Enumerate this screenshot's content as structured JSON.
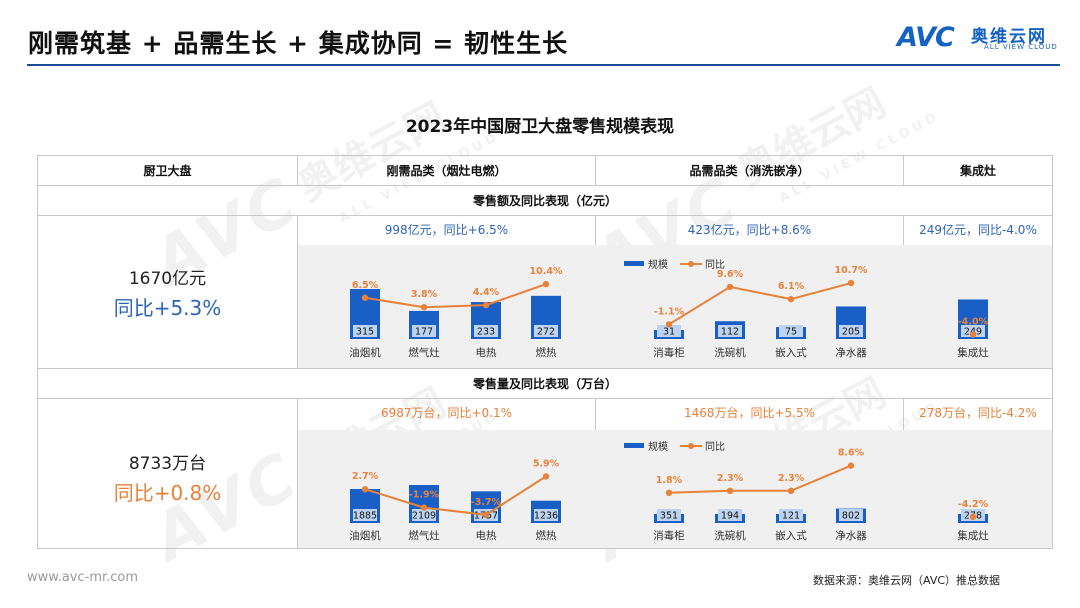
{
  "header": {
    "title": "刚需筑基 + 品需生长 + 集成协同 = 韧性生长",
    "logo_mark": "AVC",
    "logo_cn": "奥维云网",
    "logo_en": "ALL VIEW CLOUD"
  },
  "watermark": {
    "mark": "AVC",
    "cn": "奥维云网",
    "en": "ALL VIEW CLOUD"
  },
  "table": {
    "headers": [
      "厨卫大盘",
      "刚需品类（烟灶电燃）",
      "品需品类（消洗嵌净）",
      "集成灶"
    ],
    "section_sales": "零售额及同比表现（亿元）",
    "section_volume": "零售量及同比表现（万台）",
    "sales_total": "1670亿元",
    "sales_total_yoy": "同比+5.3%",
    "sales_summaries": [
      "998亿元，同比+6.5%",
      "423亿元，同比+8.6%",
      "249亿元，同比-4.0%"
    ],
    "volume_total": "8733万台",
    "volume_total_yoy": "同比+0.8%",
    "volume_summaries": [
      "6987万台，同比+0.1%",
      "1468万台，同比+5.5%",
      "278万台，同比-4.2%"
    ]
  },
  "legend": {
    "scale": "规模",
    "yoy": "同比"
  },
  "footer": {
    "left": "www.avc-mr.com",
    "right": "数据来源：奥维云网（AVC）推总数据"
  },
  "colors": {
    "bar": "#1a5fc6",
    "bar_label_bg": "#bdd4f1",
    "line": "#e8813a",
    "accent_blue": "#2e64b7",
    "accent_orange": "#e8813a"
  },
  "chart_data": {
    "title": "2023年中国厨卫大盘零售规模表现",
    "type": "bar",
    "panels": [
      {
        "metric": "sales",
        "group": "刚需品类（烟灶电燃）",
        "categories": [
          "油烟机",
          "燃气灶",
          "电热",
          "燃热"
        ],
        "series": [
          {
            "name": "规模",
            "type": "bar",
            "values": [
              315,
              177,
              233,
              272
            ]
          },
          {
            "name": "同比",
            "type": "line",
            "values": [
              6.5,
              3.8,
              4.4,
              10.4
            ],
            "labels": [
              "6.5%",
              "3.8%",
              "4.4%",
              "10.4%"
            ]
          }
        ]
      },
      {
        "metric": "sales",
        "group": "品需品类（消洗嵌净）",
        "categories": [
          "消毒柜",
          "洗碗机",
          "嵌入式",
          "净水器"
        ],
        "series": [
          {
            "name": "规模",
            "type": "bar",
            "values": [
              31,
              112,
              75,
              205
            ]
          },
          {
            "name": "同比",
            "type": "line",
            "values": [
              -1.1,
              9.6,
              6.1,
              10.7
            ],
            "labels": [
              "-1.1%",
              "9.6%",
              "6.1%",
              "10.7%"
            ]
          }
        ]
      },
      {
        "metric": "sales",
        "group": "集成灶",
        "categories": [
          "集成灶"
        ],
        "series": [
          {
            "name": "规模",
            "type": "bar",
            "values": [
              249
            ]
          },
          {
            "name": "同比",
            "type": "line",
            "values": [
              -4.0
            ],
            "labels": [
              "-4.0%"
            ]
          }
        ]
      },
      {
        "metric": "volume",
        "group": "刚需品类（烟灶电燃）",
        "categories": [
          "油烟机",
          "燃气灶",
          "电热",
          "燃热"
        ],
        "series": [
          {
            "name": "规模",
            "type": "bar",
            "values": [
              1885,
              2109,
              1757,
              1236
            ]
          },
          {
            "name": "同比",
            "type": "line",
            "values": [
              2.7,
              -1.9,
              -3.7,
              5.9
            ],
            "labels": [
              "2.7%",
              "-1.9%",
              "-3.7%",
              "5.9%"
            ]
          }
        ]
      },
      {
        "metric": "volume",
        "group": "品需品类（消洗嵌净）",
        "categories": [
          "消毒柜",
          "洗碗机",
          "嵌入式",
          "净水器"
        ],
        "series": [
          {
            "name": "规模",
            "type": "bar",
            "values": [
              351,
              194,
              121,
              802
            ]
          },
          {
            "name": "同比",
            "type": "line",
            "values": [
              1.8,
              2.3,
              2.3,
              8.6
            ],
            "labels": [
              "1.8%",
              "2.3%",
              "2.3%",
              "8.6%"
            ]
          }
        ]
      },
      {
        "metric": "volume",
        "group": "集成灶",
        "categories": [
          "集成灶"
        ],
        "series": [
          {
            "name": "规模",
            "type": "bar",
            "values": [
              278
            ]
          },
          {
            "name": "同比",
            "type": "line",
            "values": [
              -4.2
            ],
            "labels": [
              "-4.2%"
            ]
          }
        ]
      }
    ]
  }
}
